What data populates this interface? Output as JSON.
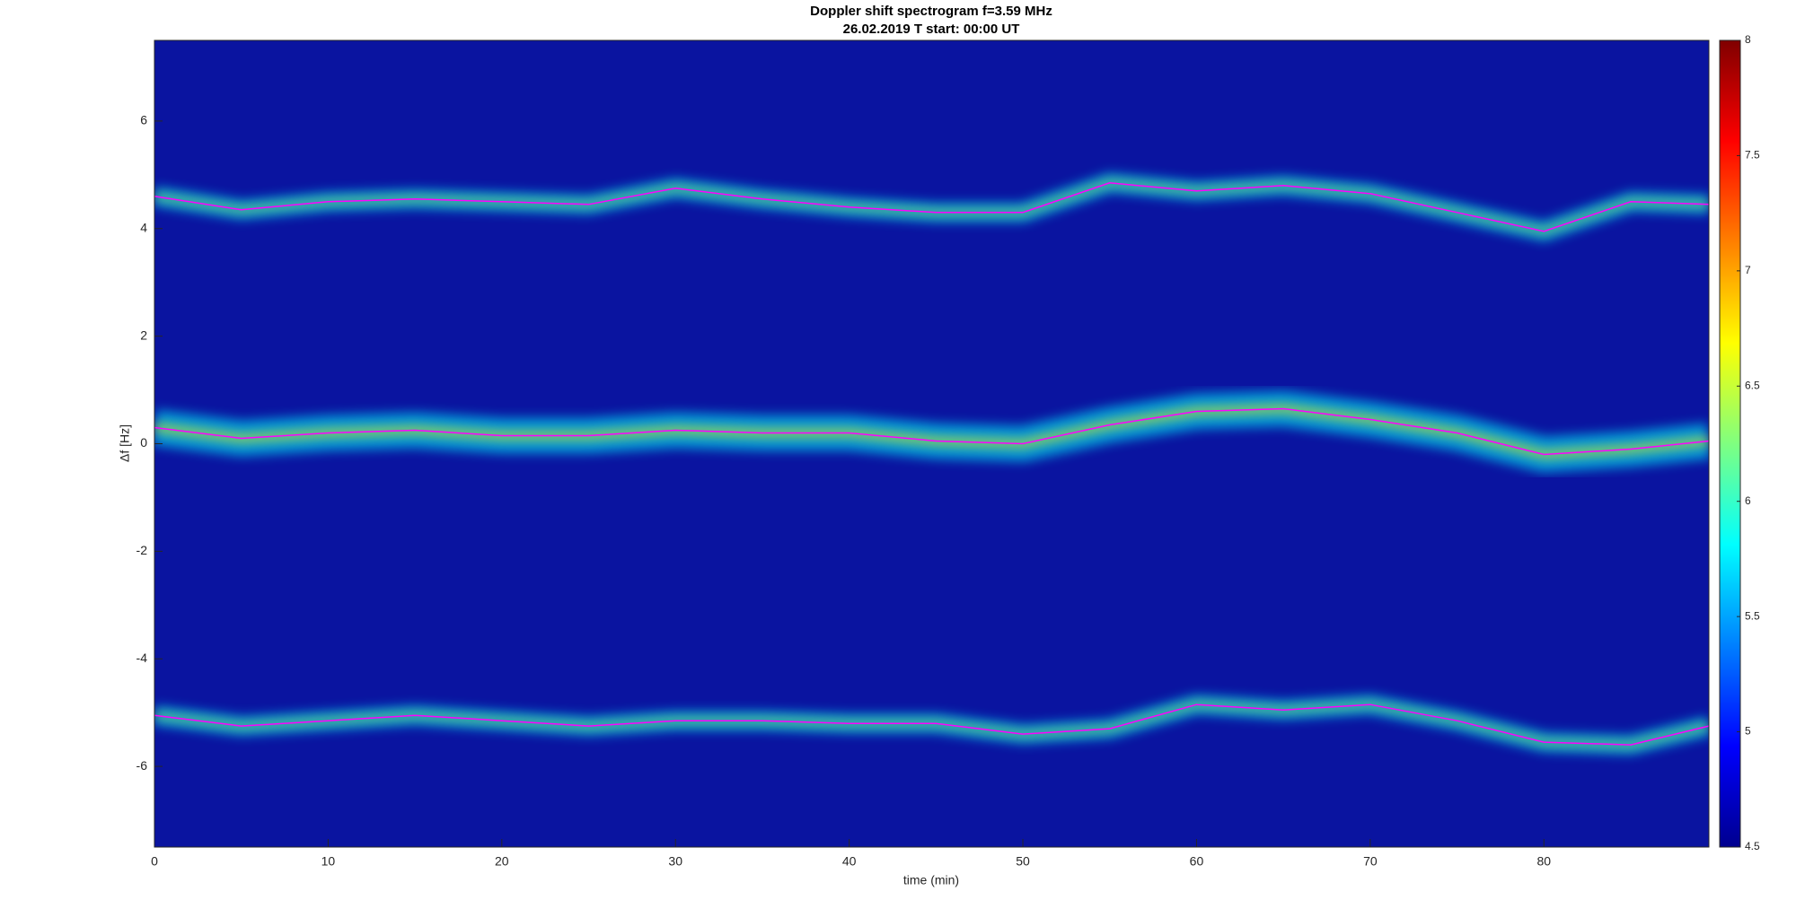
{
  "chart_data": {
    "type": "spectrogram",
    "title": "Doppler shift spectrogram f=3.59 MHz",
    "subtitle": "26.02.2019    T start: 00:00 UT",
    "x_label": "time (min)",
    "y_label": "Δf [Hz]",
    "xlim": [
      0,
      89.5
    ],
    "ylim": [
      -7.5,
      7.5
    ],
    "xticks": [
      0,
      10,
      20,
      30,
      40,
      50,
      60,
      70,
      80
    ],
    "yticks": [
      -6,
      -4,
      -2,
      0,
      2,
      4,
      6
    ],
    "colormap": "jet",
    "clim": [
      4.5,
      8
    ],
    "cticks": [
      4.5,
      5,
      5.5,
      6,
      6.5,
      7,
      7.5,
      8
    ],
    "x": [
      0,
      5,
      10,
      15,
      20,
      25,
      30,
      35,
      40,
      45,
      50,
      55,
      60,
      65,
      70,
      75,
      80,
      85,
      89.5
    ],
    "series": [
      {
        "color": "#ff00ff",
        "values": [
          4.6,
          4.35,
          4.5,
          4.55,
          4.5,
          4.45,
          4.75,
          4.55,
          4.4,
          4.3,
          4.3,
          4.85,
          4.7,
          4.8,
          4.65,
          4.3,
          3.95,
          4.5,
          4.45
        ]
      },
      {
        "color": "#ff00ff",
        "values": [
          0.3,
          0.1,
          0.2,
          0.25,
          0.15,
          0.15,
          0.25,
          0.2,
          0.2,
          0.05,
          0.0,
          0.35,
          0.6,
          0.65,
          0.45,
          0.2,
          -0.2,
          -0.1,
          0.05
        ]
      },
      {
        "color": "#ff00ff",
        "values": [
          -5.05,
          -5.25,
          -5.15,
          -5.05,
          -5.15,
          -5.25,
          -5.15,
          -5.15,
          -5.2,
          -5.2,
          -5.4,
          -5.3,
          -4.85,
          -4.95,
          -4.85,
          -5.15,
          -5.55,
          -5.6,
          -5.25
        ]
      }
    ]
  }
}
